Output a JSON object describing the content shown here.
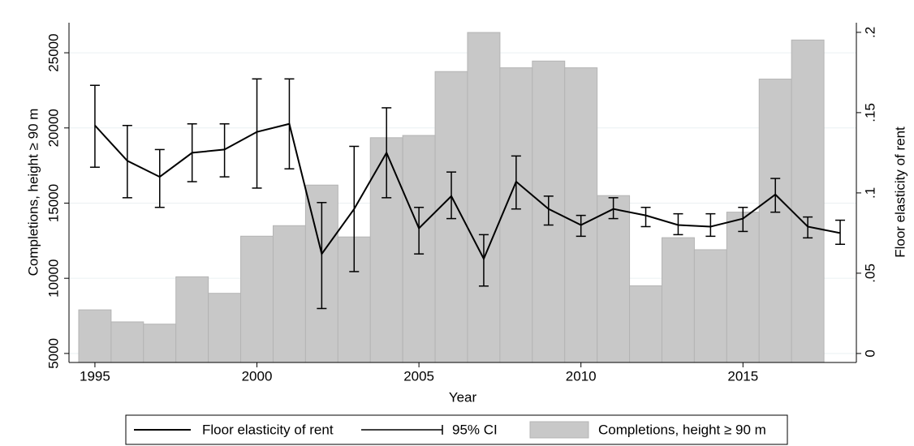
{
  "chart_data": {
    "type": "bar-line",
    "x_label": "Year",
    "y_label": "Completions, height ≥ 90 m",
    "y2_label": "Floor elasticity of rent",
    "xlim": [
      1994.2,
      2018.5
    ],
    "xticks": [
      1995,
      2000,
      2005,
      2010,
      2015
    ],
    "ylim": [
      4400,
      27000
    ],
    "yticks": [
      5000,
      10000,
      15000,
      20000,
      25000
    ],
    "y2lim": [
      -0.0056,
      0.206
    ],
    "y2ticks": [
      {
        "value": 0,
        "label": "0"
      },
      {
        "value": 0.05,
        "label": ".05"
      },
      {
        "value": 0.1,
        "label": ".1"
      },
      {
        "value": 0.15,
        "label": ".15"
      },
      {
        "value": 0.2,
        "label": ".2"
      }
    ],
    "grid": true,
    "legend": "bottom",
    "series": [
      {
        "name": "Floor elasticity of rent",
        "type": "line",
        "axis": "y2",
        "color": "#000000",
        "x": [
          1995,
          1996,
          1997,
          1998,
          1999,
          2000,
          2001,
          2002,
          2003,
          2004,
          2005,
          2006,
          2007,
          2008,
          2009,
          2010,
          2011,
          2012,
          2013,
          2014,
          2015,
          2016,
          2017,
          2018
        ],
        "values": [
          0.142,
          0.12,
          0.11,
          0.125,
          0.127,
          0.138,
          0.143,
          0.062,
          0.09,
          0.125,
          0.078,
          0.098,
          0.059,
          0.107,
          0.09,
          0.08,
          0.09,
          0.086,
          0.08,
          0.079,
          0.084,
          0.099,
          0.079,
          0.075
        ]
      },
      {
        "name": "95% CI",
        "type": "errorbar",
        "axis": "y2",
        "color": "#000000",
        "x": [
          1995,
          1996,
          1997,
          1998,
          1999,
          2000,
          2001,
          2002,
          2003,
          2004,
          2005,
          2006,
          2007,
          2008,
          2009,
          2010,
          2011,
          2012,
          2013,
          2014,
          2015,
          2016,
          2017,
          2018
        ],
        "lower": [
          0.116,
          0.097,
          0.091,
          0.107,
          0.11,
          0.103,
          0.115,
          0.028,
          0.051,
          0.097,
          0.062,
          0.084,
          0.042,
          0.09,
          0.08,
          0.073,
          0.084,
          0.079,
          0.074,
          0.073,
          0.076,
          0.088,
          0.072,
          0.068
        ],
        "upper": [
          0.167,
          0.142,
          0.127,
          0.143,
          0.143,
          0.171,
          0.171,
          0.094,
          0.129,
          0.153,
          0.091,
          0.113,
          0.074,
          0.123,
          0.098,
          0.086,
          0.097,
          0.091,
          0.087,
          0.087,
          0.091,
          0.109,
          0.085,
          0.083
        ]
      },
      {
        "name": "Completions, height ≥ 90 m",
        "type": "bar",
        "axis": "y",
        "color": "#c8c8c8",
        "x": [
          1995,
          1996,
          1997,
          1998,
          1999,
          2000,
          2001,
          2002,
          2003,
          2004,
          2005,
          2006,
          2007,
          2008,
          2009,
          2010,
          2011,
          2012,
          2013,
          2014,
          2015,
          2016,
          2017
        ],
        "values": [
          7900,
          7100,
          6950,
          10100,
          9000,
          12800,
          13500,
          16200,
          12750,
          19350,
          19500,
          23750,
          26350,
          24000,
          24450,
          24000,
          15500,
          9500,
          12700,
          11900,
          14400,
          23250,
          25850
        ]
      }
    ]
  }
}
